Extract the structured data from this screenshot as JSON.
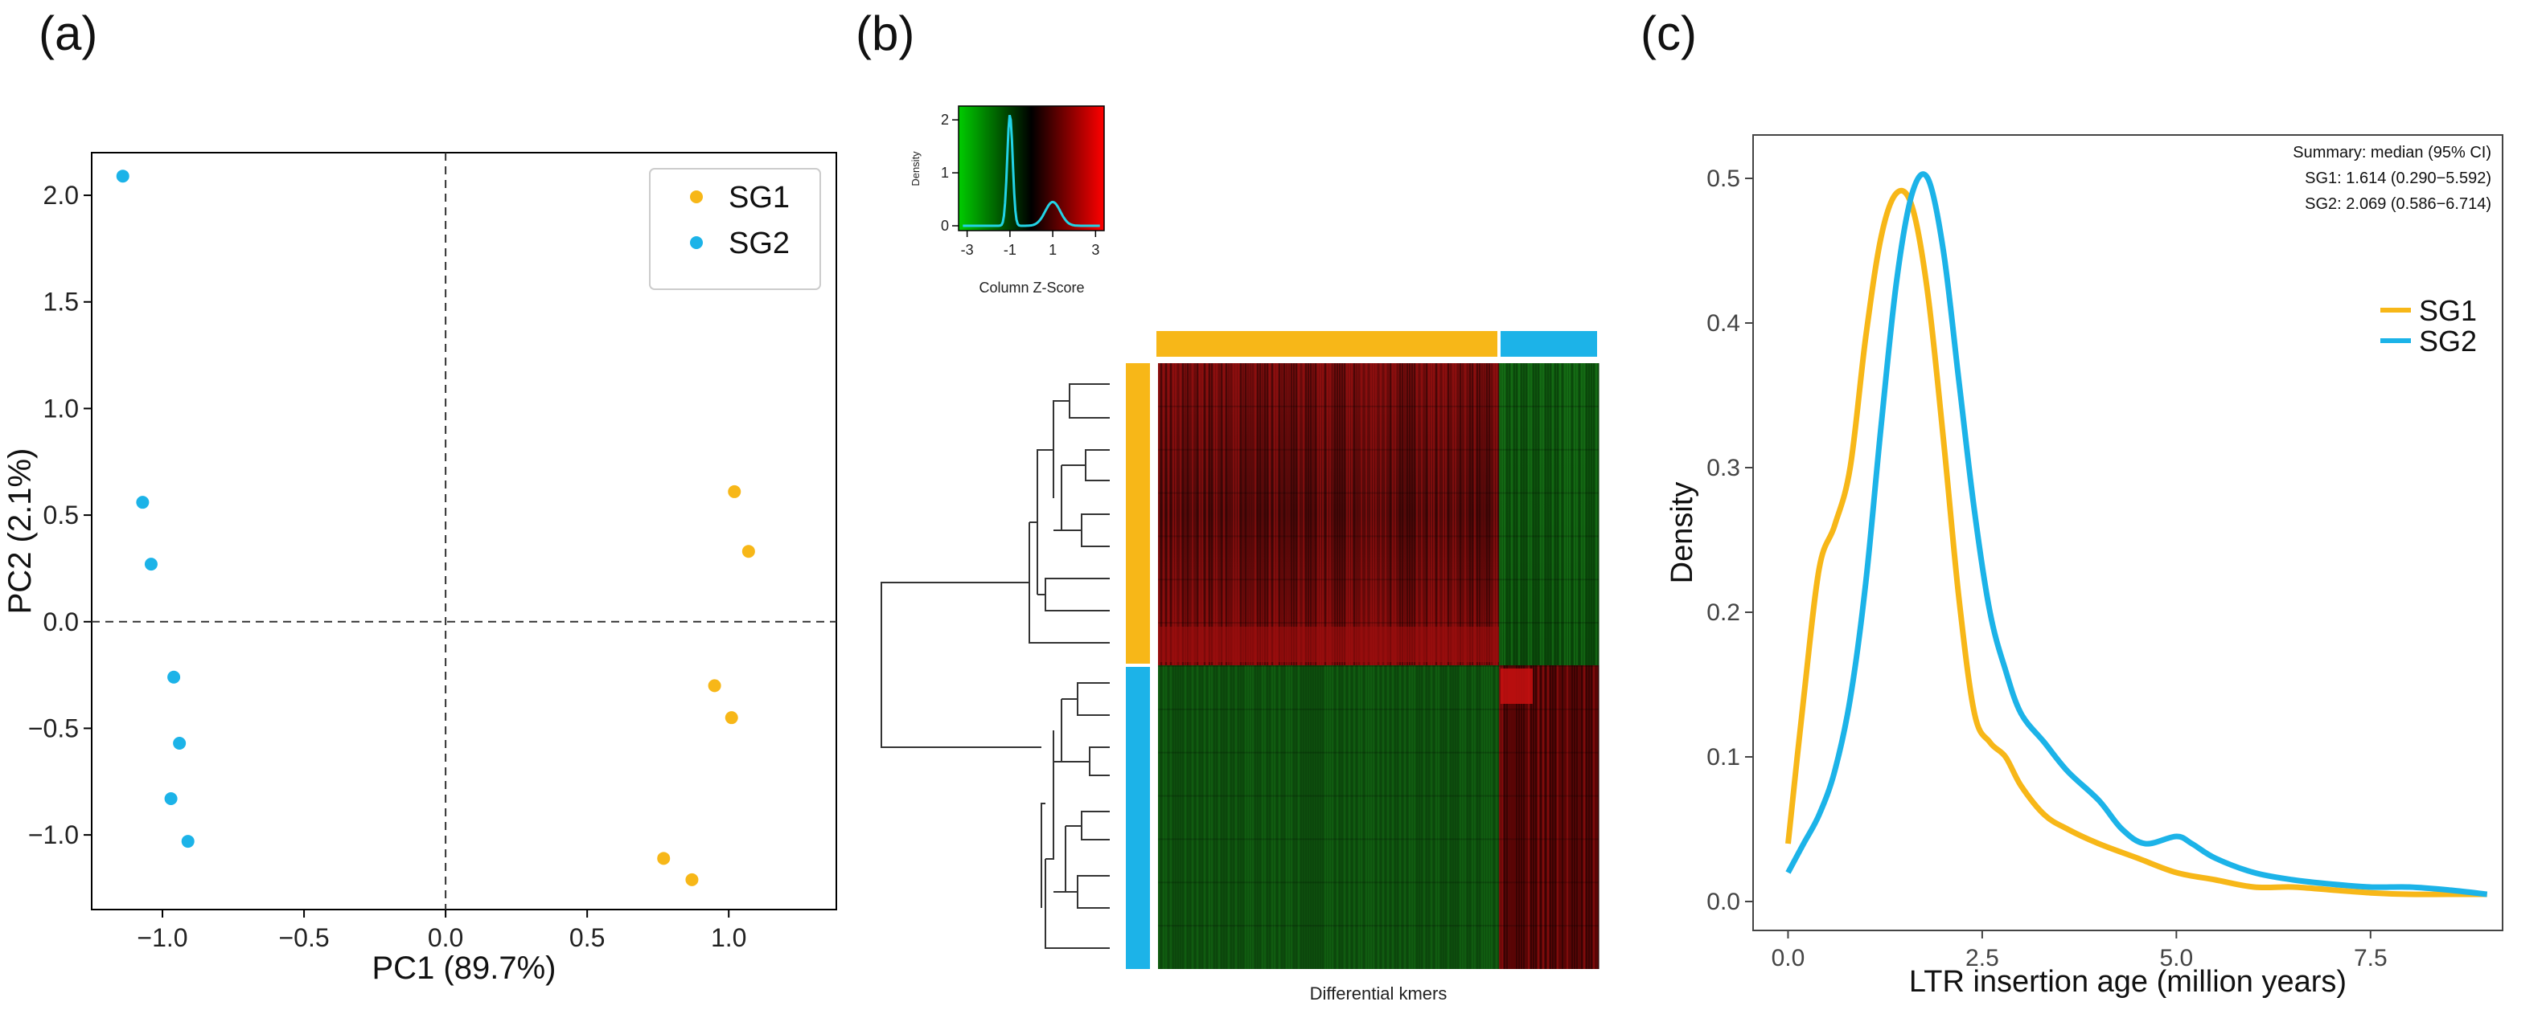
{
  "colors": {
    "SG1": "#f7b718",
    "SG2": "#1cb3e8"
  },
  "panel_a": {
    "label": "(a)",
    "xlabel": "PC1 (89.7%)",
    "ylabel": "PC2 (2.1%)",
    "xticks": [
      "−1.0",
      "−0.5",
      "0.0",
      "0.5",
      "1.0"
    ],
    "yticks": [
      "−1.0",
      "−0.5",
      "0.0",
      "0.5",
      "1.0",
      "1.5",
      "2.0"
    ],
    "legend": [
      "SG1",
      "SG2"
    ]
  },
  "panel_b": {
    "label": "(b)",
    "key_title": "Column Z-Score",
    "key_ylabel": "Density",
    "key_xticks": [
      "-3",
      "-1",
      "1",
      "3"
    ],
    "key_yticks": [
      "0",
      "1",
      "2"
    ],
    "xlabel": "Differential kmers"
  },
  "panel_c": {
    "label": "(c)",
    "xlabel": "LTR insertion age (million years)",
    "ylabel": "Density",
    "xticks": [
      "0.0",
      "2.5",
      "5.0",
      "7.5"
    ],
    "yticks": [
      "0.0",
      "0.1",
      "0.2",
      "0.3",
      "0.4",
      "0.5"
    ],
    "legend": [
      "SG1",
      "SG2"
    ],
    "summary_lines": [
      "Summary: median (95% CI)",
      "SG1: 1.614 (0.290−5.592)",
      "SG2: 2.069 (0.586−6.714)"
    ]
  },
  "chart_data": [
    {
      "type": "scatter",
      "xlabel": "PC1 (89.7%)",
      "ylabel": "PC2 (2.1%)",
      "xlim": [
        -1.25,
        1.38
      ],
      "ylim": [
        -1.35,
        2.2
      ],
      "grid": false,
      "legend": "top-right",
      "series": [
        {
          "name": "SG1",
          "points": [
            [
              1.02,
              0.61
            ],
            [
              1.07,
              0.33
            ],
            [
              0.95,
              -0.3
            ],
            [
              1.01,
              -0.45
            ],
            [
              0.77,
              -1.11
            ],
            [
              0.87,
              -1.21
            ]
          ]
        },
        {
          "name": "SG2",
          "points": [
            [
              -1.14,
              2.09
            ],
            [
              -1.07,
              0.56
            ],
            [
              -1.04,
              0.27
            ],
            [
              -0.96,
              -0.26
            ],
            [
              -0.94,
              -0.57
            ],
            [
              -0.97,
              -0.83
            ],
            [
              -0.91,
              -1.03
            ]
          ]
        }
      ]
    },
    {
      "type": "heatmap",
      "xlabel": "Differential kmers",
      "color_key": {
        "title": "Column Z-Score",
        "range": [
          -3,
          3
        ],
        "low": "#00cc00",
        "mid": "#000000",
        "high": "#ff0000"
      },
      "row_groups": [
        {
          "name": "SG1",
          "rows": 7
        },
        {
          "name": "SG2",
          "rows": 7
        }
      ],
      "column_groups": [
        {
          "name": "SG1",
          "fraction": 0.77
        },
        {
          "name": "SG2",
          "fraction": 0.23
        }
      ]
    },
    {
      "type": "line",
      "xlabel": "LTR insertion age (million years)",
      "ylabel": "Density",
      "xlim": [
        -0.45,
        9.2
      ],
      "ylim": [
        -0.02,
        0.53
      ],
      "legend": "right",
      "series": [
        {
          "name": "SG1",
          "x": [
            0,
            0.2,
            0.4,
            0.6,
            0.8,
            1.0,
            1.2,
            1.4,
            1.6,
            1.8,
            2.0,
            2.2,
            2.4,
            2.6,
            2.8,
            3.0,
            3.3,
            3.6,
            4.0,
            4.5,
            5.0,
            5.5,
            6.0,
            6.5,
            7.0,
            7.5,
            8.0,
            8.5,
            9.0
          ],
          "y": [
            0.04,
            0.14,
            0.23,
            0.26,
            0.3,
            0.39,
            0.46,
            0.49,
            0.48,
            0.42,
            0.32,
            0.21,
            0.13,
            0.11,
            0.1,
            0.08,
            0.06,
            0.05,
            0.04,
            0.03,
            0.02,
            0.015,
            0.01,
            0.01,
            0.008,
            0.006,
            0.005,
            0.005,
            0.005
          ]
        },
        {
          "name": "SG2",
          "x": [
            0,
            0.2,
            0.4,
            0.6,
            0.8,
            1.0,
            1.2,
            1.4,
            1.6,
            1.8,
            2.0,
            2.2,
            2.4,
            2.6,
            2.8,
            3.0,
            3.3,
            3.6,
            4.0,
            4.3,
            4.6,
            5.0,
            5.2,
            5.5,
            6.0,
            6.5,
            7.0,
            7.5,
            8.0,
            8.5,
            9.0
          ],
          "y": [
            0.02,
            0.04,
            0.06,
            0.09,
            0.14,
            0.22,
            0.33,
            0.43,
            0.49,
            0.5,
            0.45,
            0.36,
            0.27,
            0.2,
            0.16,
            0.13,
            0.11,
            0.09,
            0.07,
            0.05,
            0.04,
            0.045,
            0.04,
            0.03,
            0.02,
            0.015,
            0.012,
            0.01,
            0.01,
            0.008,
            0.005
          ]
        }
      ]
    }
  ]
}
